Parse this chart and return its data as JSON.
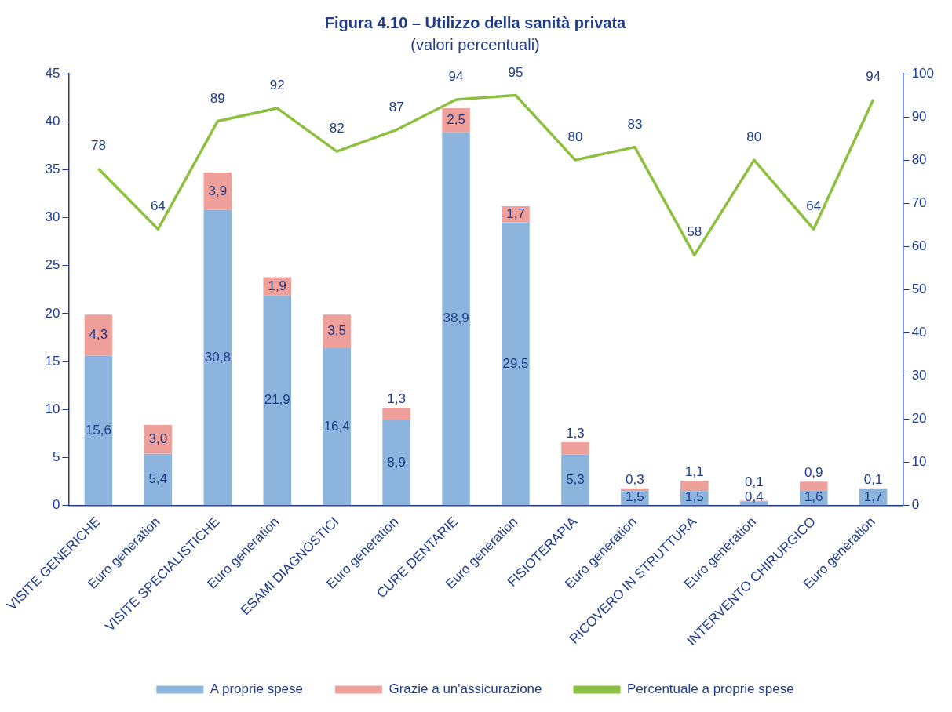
{
  "chart_data": {
    "type": "bar",
    "title": "Figura 4.10 – Utilizzo della sanità privata",
    "subtitle": "(valori percentuali)",
    "stacked": true,
    "categories": [
      "VISITE GENERICHE",
      "Euro generation",
      "VISITE SPECIALISTICHE",
      "Euro generation",
      "ESAMI DIAGNOSTICI",
      "Euro generation",
      "CURE DENTARIE",
      "Euro generation",
      "FISIOTERAPIA",
      "Euro generation",
      "RICOVERO IN STRUTTURA",
      "Euro generation",
      "INTERVENTO CHIRURGICO",
      "Euro generation"
    ],
    "series": [
      {
        "name": "A proprie spese",
        "color": "#8db4dc",
        "values": [
          15.6,
          5.4,
          30.8,
          21.9,
          16.4,
          8.9,
          38.9,
          29.5,
          5.3,
          1.5,
          1.5,
          0.4,
          1.6,
          1.7
        ],
        "value_labels": [
          "15,6",
          "5,4",
          "30,8",
          "21,9",
          "16,4",
          "8,9",
          "38,9",
          "29,5",
          "5,3",
          "1,5",
          "1,5",
          "0,4",
          "1,6",
          "1,7"
        ]
      },
      {
        "name": "Grazie a un'assicurazione",
        "color": "#f0a09a",
        "values": [
          4.3,
          3.0,
          3.9,
          1.9,
          3.5,
          1.3,
          2.5,
          1.7,
          1.3,
          0.3,
          1.1,
          0.1,
          0.9,
          0.1
        ],
        "value_labels": [
          "4,3",
          "3,0",
          "3,9",
          "1,9",
          "3,5",
          "1,3",
          "2,5",
          "1,7",
          "1,3",
          "0,3",
          "1,1",
          "0,1",
          "0,9",
          "0,1"
        ]
      },
      {
        "name": "Percentuale a proprie spese",
        "type": "line",
        "axis": "y2",
        "color": "#8dc03f",
        "marker": "none",
        "values": [
          78,
          64,
          89,
          92,
          82,
          87,
          94,
          95,
          80,
          83,
          58,
          80,
          64,
          94
        ],
        "value_labels": [
          "78",
          "64",
          "89",
          "92",
          "82",
          "87",
          "94",
          "95",
          "80",
          "83",
          "58",
          "80",
          "64",
          "94"
        ]
      }
    ],
    "ylim": [
      0,
      45
    ],
    "yticks": [
      0,
      5,
      10,
      15,
      20,
      25,
      30,
      35,
      40,
      45
    ],
    "y2lim": [
      0,
      100
    ],
    "y2ticks": [
      0,
      10,
      20,
      30,
      40,
      50,
      60,
      70,
      80,
      90,
      100
    ],
    "grid": false,
    "legend": "bottom"
  }
}
